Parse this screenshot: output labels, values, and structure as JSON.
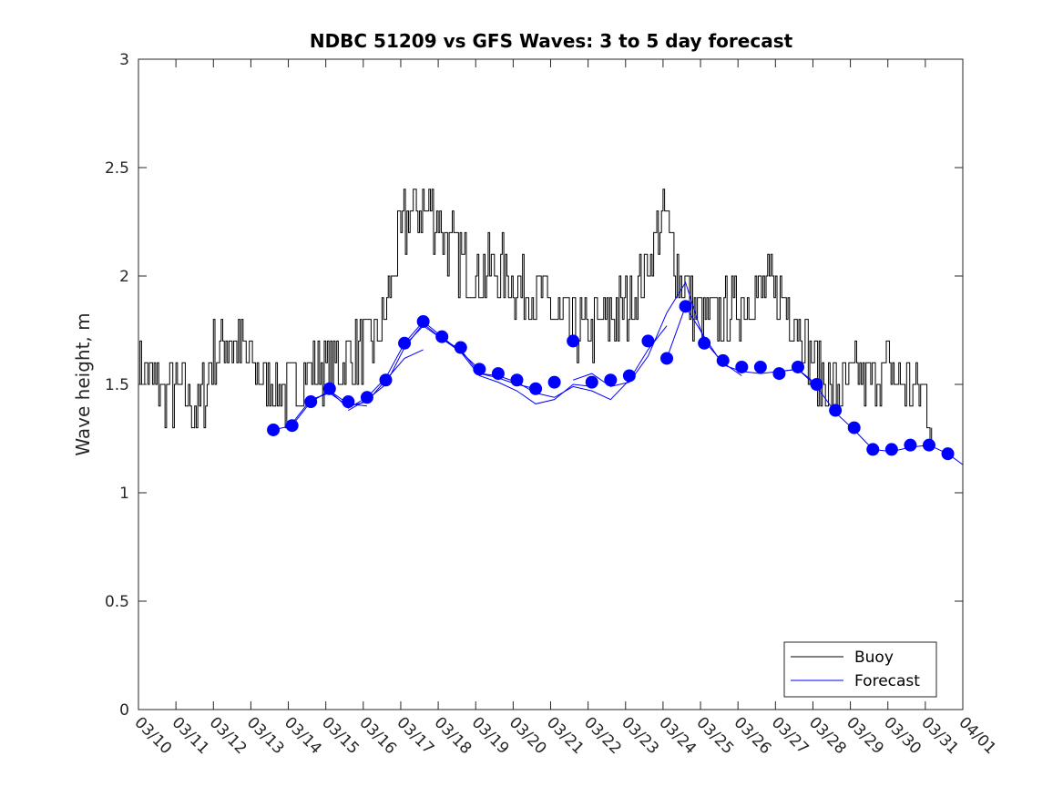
{
  "chart_data": {
    "type": "line",
    "title": "NDBC 51209 vs GFS Waves: 3 to 5 day forecast",
    "xlabel": "",
    "ylabel": "Wave height, m",
    "ylim": [
      0,
      3
    ],
    "xlim_days": [
      0,
      22
    ],
    "yticks": [
      "0",
      "0.5",
      "1",
      "1.5",
      "2",
      "2.5",
      "3"
    ],
    "xticks": [
      "03/10",
      "03/11",
      "03/12",
      "03/13",
      "03/14",
      "03/15",
      "03/16",
      "03/17",
      "03/18",
      "03/19",
      "03/20",
      "03/21",
      "03/22",
      "03/23",
      "03/24",
      "03/25",
      "03/26",
      "03/27",
      "03/28",
      "03/29",
      "03/30",
      "03/31",
      "04/01"
    ],
    "grid": false,
    "legend": {
      "position": "bottom-right",
      "entries": [
        {
          "label": "Buoy",
          "color": "#000000"
        },
        {
          "label": "Forecast",
          "color": "#0000ff"
        }
      ]
    },
    "buoy": {
      "name": "Buoy",
      "color": "#000000",
      "x": [
        0,
        0.5,
        1,
        1.5,
        1.75,
        2,
        2.5,
        3,
        3.5,
        4,
        4.5,
        5,
        5.5,
        6,
        6.5,
        7,
        7.5,
        8,
        8.5,
        9,
        9.5,
        10,
        10.5,
        11,
        11.5,
        12,
        12.5,
        13,
        13.5,
        14,
        14.5,
        15,
        15.5,
        16,
        16.5,
        17,
        17.5,
        18,
        18.5,
        19,
        19.5,
        20,
        20.5,
        21,
        21.2
      ],
      "y": [
        1.6,
        1.5,
        1.45,
        1.4,
        1.45,
        1.65,
        1.7,
        1.6,
        1.5,
        1.45,
        1.55,
        1.6,
        1.6,
        1.65,
        1.75,
        2.2,
        2.35,
        2.25,
        2.1,
        2.0,
        2.05,
        1.95,
        1.9,
        1.85,
        1.75,
        1.75,
        1.8,
        1.85,
        2.0,
        2.3,
        1.95,
        1.8,
        1.8,
        1.85,
        1.95,
        1.9,
        1.85,
        1.6,
        1.45,
        1.5,
        1.55,
        1.55,
        1.5,
        1.45,
        1.3
      ]
    },
    "forecast_lines": [
      {
        "x": [
          3.6,
          4.1,
          4.6,
          5.1,
          5.6,
          6.1
        ],
        "y": [
          1.29,
          1.31,
          1.42,
          1.47,
          1.41,
          1.4
        ]
      },
      {
        "x": [
          4.1,
          4.6,
          5.1,
          5.6,
          6.1,
          6.6,
          7.1,
          7.6
        ],
        "y": [
          1.32,
          1.43,
          1.46,
          1.4,
          1.42,
          1.52,
          1.62,
          1.66
        ]
      },
      {
        "x": [
          4.6,
          5.1,
          5.6,
          6.1,
          6.6,
          7.1,
          7.6,
          8.1,
          8.6,
          9.1
        ],
        "y": [
          1.42,
          1.47,
          1.39,
          1.44,
          1.53,
          1.69,
          1.79,
          1.72,
          1.65,
          1.57
        ]
      },
      {
        "x": [
          5.6,
          6.1,
          6.6,
          7.1,
          7.6,
          8.1,
          8.6,
          9.1,
          9.6,
          10.1,
          10.6
        ],
        "y": [
          1.38,
          1.43,
          1.5,
          1.67,
          1.78,
          1.71,
          1.66,
          1.55,
          1.53,
          1.5,
          1.48
        ]
      },
      {
        "x": [
          7.1,
          7.6,
          8.1,
          8.6,
          9.1,
          9.6,
          10.1,
          10.6,
          11.1,
          11.6,
          12.1
        ],
        "y": [
          1.68,
          1.77,
          1.71,
          1.65,
          1.54,
          1.51,
          1.47,
          1.41,
          1.43,
          1.5,
          1.49
        ]
      },
      {
        "x": [
          9.1,
          9.6,
          10.1,
          10.6,
          11.1,
          11.6,
          12.1,
          12.6,
          13.1,
          13.6,
          14.1
        ],
        "y": [
          1.55,
          1.54,
          1.51,
          1.46,
          1.44,
          1.49,
          1.47,
          1.43,
          1.52,
          1.66,
          1.77
        ]
      },
      {
        "x": [
          11.6,
          12.1,
          12.6,
          13.1,
          13.6,
          14.1,
          14.6,
          15.1,
          15.6,
          16.1
        ],
        "y": [
          1.52,
          1.55,
          1.49,
          1.51,
          1.63,
          1.83,
          1.97,
          1.7,
          1.6,
          1.54
        ]
      },
      {
        "x": [
          14.1,
          14.6,
          15.1,
          15.6,
          16.1,
          16.6,
          17.1,
          17.6,
          18.1
        ],
        "y": [
          1.62,
          1.86,
          1.72,
          1.59,
          1.56,
          1.55,
          1.56,
          1.57,
          1.5
        ]
      },
      {
        "x": [
          17.1,
          17.6,
          18.1,
          18.6,
          19.1,
          19.6,
          20.1,
          20.6,
          21.1,
          21.6,
          22.0
        ],
        "y": [
          1.56,
          1.57,
          1.49,
          1.37,
          1.29,
          1.2,
          1.19,
          1.21,
          1.22,
          1.18,
          1.13
        ]
      }
    ],
    "forecast_points": {
      "name": "Forecast",
      "color": "#0000ff",
      "x": [
        3.6,
        4.1,
        4.6,
        5.1,
        5.6,
        6.1,
        6.6,
        7.1,
        7.6,
        8.1,
        8.6,
        9.1,
        9.6,
        10.1,
        10.6,
        11.1,
        11.6,
        12.1,
        12.6,
        13.1,
        13.6,
        14.1,
        14.6,
        15.1,
        15.6,
        16.1,
        16.6,
        17.1,
        17.6,
        18.1,
        18.6,
        19.1,
        19.6,
        20.1,
        20.6,
        21.1,
        21.6
      ],
      "y": [
        1.29,
        1.31,
        1.42,
        1.48,
        1.42,
        1.44,
        1.52,
        1.69,
        1.79,
        1.72,
        1.67,
        1.57,
        1.55,
        1.52,
        1.48,
        1.51,
        1.7,
        1.51,
        1.52,
        1.54,
        1.7,
        1.62,
        1.86,
        1.69,
        1.61,
        1.58,
        1.58,
        1.55,
        1.58,
        1.5,
        1.38,
        1.3,
        1.2,
        1.2,
        1.22,
        1.22,
        1.18
      ]
    }
  }
}
